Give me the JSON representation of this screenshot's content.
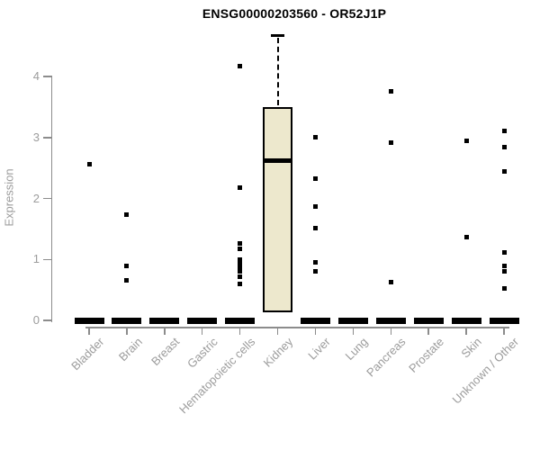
{
  "chart_data": {
    "type": "boxplot",
    "title": "ENSG00000203560 - OR52J1P",
    "xlabel": "",
    "ylabel": "Expression",
    "ylim": [
      0,
      4.7
    ],
    "yticks": [
      0,
      1,
      2,
      3,
      4
    ],
    "grid": false,
    "legend": "none",
    "categories": [
      "Bladder",
      "Brain",
      "Breast",
      "Gastric",
      "Hematopoietic cells",
      "Kidney",
      "Liver",
      "Lung",
      "Pancreas",
      "Prostate",
      "Skin",
      "Unknown / Other"
    ],
    "series": [
      {
        "name": "Bladder",
        "zero_bar": true,
        "box": null,
        "points": [
          2.57
        ]
      },
      {
        "name": "Brain",
        "zero_bar": true,
        "box": null,
        "points": [
          1.73,
          0.89,
          0.65
        ]
      },
      {
        "name": "Breast",
        "zero_bar": true,
        "box": null,
        "points": []
      },
      {
        "name": "Gastric",
        "zero_bar": true,
        "box": null,
        "points": []
      },
      {
        "name": "Hematopoietic cells",
        "zero_bar": true,
        "box": null,
        "points": [
          4.17,
          2.18,
          1.26,
          1.17,
          1.0,
          0.93,
          0.87,
          0.8,
          0.71,
          0.6
        ]
      },
      {
        "name": "Kidney",
        "zero_bar": false,
        "box": {
          "q1": 0.13,
          "median": 2.62,
          "q3": 3.5,
          "whisker_high": 4.67
        },
        "points": []
      },
      {
        "name": "Liver",
        "zero_bar": true,
        "box": null,
        "points": [
          3.0,
          2.33,
          1.87,
          1.52,
          0.96,
          0.81
        ]
      },
      {
        "name": "Lung",
        "zero_bar": true,
        "box": null,
        "points": []
      },
      {
        "name": "Pancreas",
        "zero_bar": true,
        "box": null,
        "points": [
          3.76,
          2.91,
          0.63
        ]
      },
      {
        "name": "Prostate",
        "zero_bar": true,
        "box": null,
        "points": []
      },
      {
        "name": "Skin",
        "zero_bar": true,
        "box": null,
        "points": [
          2.94,
          1.37
        ]
      },
      {
        "name": "Unknown / Other",
        "zero_bar": true,
        "box": null,
        "points": [
          3.11,
          2.85,
          2.44,
          1.12,
          0.9,
          0.81,
          0.53
        ]
      }
    ]
  },
  "colors": {
    "title": "#000000",
    "axis": "#8c8c8c",
    "axis_text": "#9c9c9c",
    "box_fill": "#ede8cd",
    "box_border": "#000000",
    "point": "#000000",
    "background": "#ffffff"
  }
}
